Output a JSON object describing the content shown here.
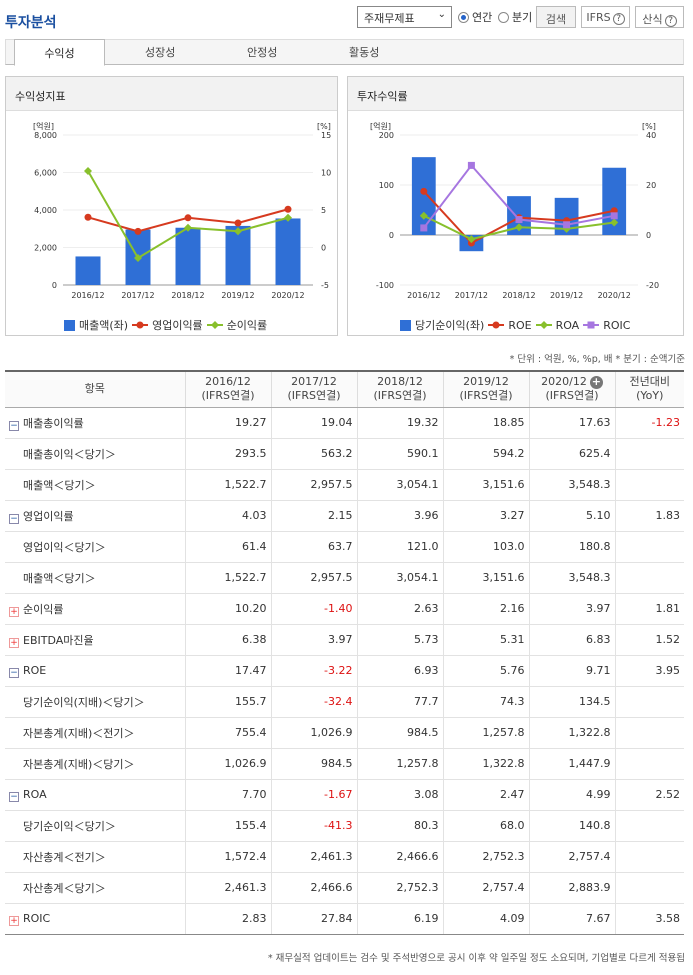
{
  "header": {
    "title": "투자분석",
    "select_value": "주재무제표",
    "radio_annual": "연간",
    "radio_quarter": "분기",
    "search": "검색",
    "ifrs": "IFRS",
    "formula": "산식",
    "qmark": "?"
  },
  "tabs": [
    "수익성",
    "성장성",
    "안정성",
    "활동성"
  ],
  "left_chart": {
    "panel_title": "수익성지표",
    "y_left_unit": "[억원]",
    "y_right_unit": "[%]",
    "legend": [
      "매출액(좌)",
      "영업이익률",
      "순이익률"
    ]
  },
  "right_chart": {
    "panel_title": "투자수익률",
    "y_left_unit": "[억원]",
    "y_right_unit": "[%]",
    "legend": [
      "당기순이익(좌)",
      "ROE",
      "ROA",
      "ROIC"
    ]
  },
  "colors": {
    "bar": "#2f6fd6",
    "red": "#d63a1f",
    "green": "#88c02c",
    "purple": "#a676e0"
  },
  "chart_data": [
    {
      "type": "bar+line",
      "title": "수익성지표",
      "categories": [
        "2016/12",
        "2017/12",
        "2018/12",
        "2019/12",
        "2020/12"
      ],
      "ylim_left": [
        0,
        8000
      ],
      "yticks_left": [
        "0",
        "2,000",
        "4,000",
        "6,000",
        "8,000"
      ],
      "ylim_right": [
        -5,
        15
      ],
      "yticks_right": [
        "-5",
        "0",
        "5",
        "10",
        "15"
      ],
      "series": [
        {
          "name": "매출액(좌)",
          "kind": "bar",
          "axis": "left",
          "values": [
            1522.7,
            2957.5,
            3054.1,
            3151.6,
            3548.3
          ]
        },
        {
          "name": "영업이익률",
          "kind": "line",
          "axis": "right",
          "values": [
            4.03,
            2.15,
            3.96,
            3.27,
            5.1
          ]
        },
        {
          "name": "순이익률",
          "kind": "line",
          "axis": "right",
          "values": [
            10.2,
            -1.4,
            2.63,
            2.16,
            3.97
          ]
        }
      ]
    },
    {
      "type": "bar+line",
      "title": "투자수익률",
      "categories": [
        "2016/12",
        "2017/12",
        "2018/12",
        "2019/12",
        "2020/12"
      ],
      "ylim_left": [
        -100,
        200
      ],
      "yticks_left": [
        "-100",
        "0",
        "100",
        "200"
      ],
      "ylim_right": [
        -20,
        40
      ],
      "yticks_right": [
        "-20",
        "0",
        "20",
        "40"
      ],
      "series": [
        {
          "name": "당기순이익(좌)",
          "kind": "bar",
          "axis": "left",
          "values": [
            155.7,
            -32.4,
            77.7,
            74.3,
            134.5
          ]
        },
        {
          "name": "ROE",
          "kind": "line",
          "axis": "right",
          "values": [
            17.47,
            -3.22,
            6.93,
            5.76,
            9.71
          ]
        },
        {
          "name": "ROA",
          "kind": "line",
          "axis": "right",
          "values": [
            7.7,
            -1.67,
            3.08,
            2.47,
            4.99
          ]
        },
        {
          "name": "ROIC",
          "kind": "line",
          "axis": "right",
          "values": [
            2.83,
            27.84,
            6.19,
            4.09,
            7.67
          ]
        }
      ]
    }
  ],
  "units_note": "* 단위 : 억원, %, %p, 배   * 분기 : 순액기준",
  "table": {
    "headers": [
      "항목",
      "2016/12\n(IFRS연결)",
      "2017/12\n(IFRS연결)",
      "2018/12\n(IFRS연결)",
      "2019/12\n(IFRS연결)",
      "2020/12\n(IFRS연결)",
      "전년대비\n(YoY)"
    ],
    "rows": [
      {
        "label": "매출총이익률",
        "icon": "minus",
        "vals": [
          "19.27",
          "19.04",
          "19.32",
          "18.85",
          "17.63",
          "-1.23"
        ]
      },
      {
        "label": "매출총이익＜당기＞",
        "sub": true,
        "vals": [
          "293.5",
          "563.2",
          "590.1",
          "594.2",
          "625.4",
          ""
        ]
      },
      {
        "label": "매출액＜당기＞",
        "sub": true,
        "vals": [
          "1,522.7",
          "2,957.5",
          "3,054.1",
          "3,151.6",
          "3,548.3",
          ""
        ]
      },
      {
        "label": "영업이익률",
        "icon": "minus",
        "vals": [
          "4.03",
          "2.15",
          "3.96",
          "3.27",
          "5.10",
          "1.83"
        ]
      },
      {
        "label": "영업이익＜당기＞",
        "sub": true,
        "vals": [
          "61.4",
          "63.7",
          "121.0",
          "103.0",
          "180.8",
          ""
        ]
      },
      {
        "label": "매출액＜당기＞",
        "sub": true,
        "vals": [
          "1,522.7",
          "2,957.5",
          "3,054.1",
          "3,151.6",
          "3,548.3",
          ""
        ]
      },
      {
        "label": "순이익률",
        "icon": "plus",
        "vals": [
          "10.20",
          "-1.40",
          "2.63",
          "2.16",
          "3.97",
          "1.81"
        ]
      },
      {
        "label": "EBITDA마진율",
        "icon": "plus",
        "vals": [
          "6.38",
          "3.97",
          "5.73",
          "5.31",
          "6.83",
          "1.52"
        ]
      },
      {
        "label": "ROE",
        "icon": "minus",
        "vals": [
          "17.47",
          "-3.22",
          "6.93",
          "5.76",
          "9.71",
          "3.95"
        ]
      },
      {
        "label": "당기순이익(지배)＜당기＞",
        "sub": true,
        "vals": [
          "155.7",
          "-32.4",
          "77.7",
          "74.3",
          "134.5",
          ""
        ]
      },
      {
        "label": "자본총계(지배)＜전기＞",
        "sub": true,
        "vals": [
          "755.4",
          "1,026.9",
          "984.5",
          "1,257.8",
          "1,322.8",
          ""
        ]
      },
      {
        "label": "자본총계(지배)＜당기＞",
        "sub": true,
        "vals": [
          "1,026.9",
          "984.5",
          "1,257.8",
          "1,322.8",
          "1,447.9",
          ""
        ]
      },
      {
        "label": "ROA",
        "icon": "minus",
        "vals": [
          "7.70",
          "-1.67",
          "3.08",
          "2.47",
          "4.99",
          "2.52"
        ]
      },
      {
        "label": "당기순이익＜당기＞",
        "sub": true,
        "vals": [
          "155.4",
          "-41.3",
          "80.3",
          "68.0",
          "140.8",
          ""
        ]
      },
      {
        "label": "자산총계＜전기＞",
        "sub": true,
        "vals": [
          "1,572.4",
          "2,461.3",
          "2,466.6",
          "2,752.3",
          "2,757.4",
          ""
        ]
      },
      {
        "label": "자산총계＜당기＞",
        "sub": true,
        "vals": [
          "2,461.3",
          "2,466.6",
          "2,752.3",
          "2,757.4",
          "2,883.9",
          ""
        ]
      },
      {
        "label": "ROIC",
        "icon": "plus",
        "vals": [
          "2.83",
          "27.84",
          "6.19",
          "4.09",
          "7.67",
          "3.58"
        ]
      }
    ]
  },
  "footnote": "* 재무실적 업데이트는 검수 및 주석반영으로 공시 이후 약 일주일 정도 소요되며, 기업별로 다르게 적용됩"
}
